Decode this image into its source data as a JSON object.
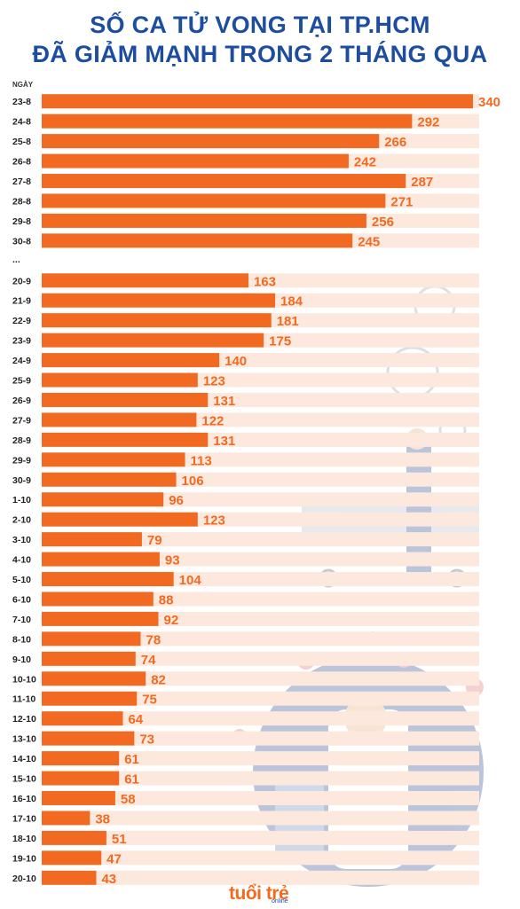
{
  "title_line1": "SỐ CA TỬ VONG TẠI TP.HCM",
  "title_line2": "ĐÃ GIẢM MẠNH TRONG 2 THÁNG QUA",
  "logo_text": "tuổi trẻ",
  "logo_sub": "online",
  "colors": {
    "bar": "#f26a21",
    "stripe": "#fce8dc",
    "title": "#1d4d9e"
  },
  "chart_data": {
    "type": "bar",
    "orientation": "horizontal",
    "header_label": "NGÀY",
    "gap_label": "...",
    "categories": [
      "23-8",
      "24-8",
      "25-8",
      "26-8",
      "27-8",
      "28-8",
      "29-8",
      "30-8",
      "...",
      "20-9",
      "21-9",
      "22-9",
      "23-9",
      "24-9",
      "25-9",
      "26-9",
      "27-9",
      "28-9",
      "29-9",
      "30-9",
      "1-10",
      "2-10",
      "3-10",
      "4-10",
      "5-10",
      "6-10",
      "7-10",
      "8-10",
      "9-10",
      "10-10",
      "11-10",
      "12-10",
      "13-10",
      "14-10",
      "15-10",
      "16-10",
      "17-10",
      "18-10",
      "19-10",
      "20-10"
    ],
    "values": [
      340,
      292,
      266,
      242,
      287,
      271,
      256,
      245,
      null,
      163,
      184,
      181,
      175,
      140,
      123,
      131,
      122,
      131,
      113,
      106,
      96,
      123,
      79,
      93,
      104,
      88,
      92,
      78,
      74,
      82,
      75,
      64,
      73,
      61,
      61,
      58,
      38,
      51,
      47,
      43
    ],
    "xlim": [
      0,
      340
    ]
  }
}
